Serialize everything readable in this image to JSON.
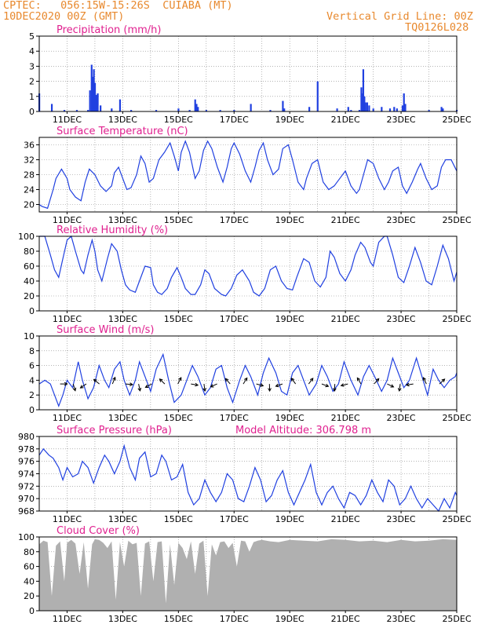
{
  "header": {
    "line1": "CPTEC:   056:15W-15:26S  CUIABA (MT)",
    "line2": "10DEC2020 00Z (GMT)",
    "grid_note": "Vertical Grid Line: 00Z",
    "code": "TQ0126L028"
  },
  "colors": {
    "header": "#e8892e",
    "panel_title": "#e0208f",
    "series_line": "#2040e0",
    "cloud_fill": "#b0b0b0",
    "wind_arrow": "#000000",
    "grid": "#888888"
  },
  "x_ticks": [
    "11DEC",
    "13DEC",
    "15DEC",
    "17DEC",
    "19DEC",
    "21DEC",
    "23DEC",
    "25DEC"
  ],
  "chart_data": [
    {
      "type": "bar",
      "title": "Precipitation (mm/h)",
      "ylim": [
        0,
        5
      ],
      "yticks": [
        "0",
        "1",
        "2",
        "3",
        "4",
        "5"
      ],
      "x_unit": "days since 10DEC2020 00Z",
      "bars": [
        [
          0.0,
          1.2
        ],
        [
          0.45,
          0.5
        ],
        [
          0.9,
          0.1
        ],
        [
          1.35,
          0.1
        ],
        [
          1.75,
          0.1
        ],
        [
          1.82,
          1.4
        ],
        [
          1.88,
          3.1
        ],
        [
          1.92,
          2.3
        ],
        [
          1.96,
          2.8
        ],
        [
          2.0,
          1.9
        ],
        [
          2.04,
          1.1
        ],
        [
          2.1,
          1.2
        ],
        [
          2.2,
          0.4
        ],
        [
          2.6,
          0.2
        ],
        [
          2.9,
          0.8
        ],
        [
          3.3,
          0.1
        ],
        [
          4.2,
          0.1
        ],
        [
          5.0,
          0.2
        ],
        [
          5.4,
          0.1
        ],
        [
          5.6,
          0.8
        ],
        [
          5.65,
          0.5
        ],
        [
          5.7,
          0.3
        ],
        [
          6.0,
          0.1
        ],
        [
          6.5,
          0.1
        ],
        [
          7.0,
          0.1
        ],
        [
          7.6,
          0.5
        ],
        [
          8.3,
          0.1
        ],
        [
          8.75,
          0.7
        ],
        [
          8.8,
          0.2
        ],
        [
          9.7,
          0.3
        ],
        [
          10.0,
          2.0
        ],
        [
          10.7,
          0.2
        ],
        [
          11.1,
          0.3
        ],
        [
          11.2,
          0.1
        ],
        [
          11.5,
          0.1
        ],
        [
          11.57,
          1.6
        ],
        [
          11.6,
          1.2
        ],
        [
          11.64,
          2.8
        ],
        [
          11.68,
          1.0
        ],
        [
          11.72,
          0.6
        ],
        [
          11.78,
          0.6
        ],
        [
          11.85,
          0.4
        ],
        [
          12.0,
          0.2
        ],
        [
          12.3,
          0.3
        ],
        [
          12.6,
          0.2
        ],
        [
          12.75,
          0.3
        ],
        [
          12.85,
          0.2
        ],
        [
          13.05,
          0.4
        ],
        [
          13.1,
          1.2
        ],
        [
          13.15,
          0.5
        ],
        [
          14.0,
          0.1
        ],
        [
          14.45,
          0.3
        ],
        [
          14.5,
          0.2
        ],
        [
          15.0,
          0.1
        ]
      ]
    },
    {
      "type": "line",
      "title": "Surface Temperature (nC)",
      "ylim": [
        18,
        38
      ],
      "yticks": [
        "20",
        "24",
        "28",
        "32",
        "36"
      ],
      "x": [
        0,
        0.1,
        0.3,
        0.5,
        0.6,
        0.8,
        1.0,
        1.1,
        1.3,
        1.5,
        1.65,
        1.8,
        2.0,
        2.2,
        2.4,
        2.6,
        2.7,
        2.85,
        3.0,
        3.15,
        3.3,
        3.5,
        3.65,
        3.8,
        3.95,
        4.1,
        4.3,
        4.5,
        4.7,
        4.85,
        5.0,
        5.1,
        5.25,
        5.4,
        5.6,
        5.75,
        5.9,
        6.05,
        6.2,
        6.4,
        6.6,
        6.75,
        6.9,
        7.0,
        7.2,
        7.4,
        7.6,
        7.75,
        7.9,
        8.05,
        8.2,
        8.4,
        8.6,
        8.75,
        8.95,
        9.1,
        9.3,
        9.5,
        9.6,
        9.8,
        10.0,
        10.1,
        10.2,
        10.4,
        10.6,
        10.8,
        11.0,
        11.2,
        11.4,
        11.5,
        11.65,
        11.8,
        12.0,
        12.2,
        12.4,
        12.55,
        12.7,
        12.9,
        13.05,
        13.2,
        13.4,
        13.6,
        13.7,
        13.9,
        14.1,
        14.3,
        14.45,
        14.6,
        14.8,
        15.0
      ],
      "y": [
        20,
        19.5,
        19,
        24,
        27,
        29.5,
        27,
        24,
        22,
        21,
        26,
        29.5,
        28,
        25,
        23.5,
        25,
        28.5,
        30,
        27,
        24,
        24.5,
        28,
        33,
        31,
        26,
        27,
        32,
        34,
        36.5,
        33,
        29,
        34,
        37,
        34,
        27,
        29,
        34.5,
        37,
        35,
        30,
        26,
        30,
        35,
        36.5,
        33.5,
        29,
        26,
        30,
        34.5,
        36.5,
        32,
        28,
        29.5,
        35,
        36,
        32,
        26,
        24,
        27,
        31,
        32,
        29,
        26,
        24,
        25,
        27,
        29,
        25,
        23,
        24,
        28,
        32,
        31,
        27,
        24,
        26,
        29,
        30,
        25,
        23,
        26,
        29.5,
        31,
        27,
        24,
        25,
        30,
        32,
        32,
        29
      ]
    },
    {
      "type": "line",
      "title": "Relative Humidity (%)",
      "ylim": [
        0,
        100
      ],
      "yticks": [
        "0",
        "20",
        "40",
        "60",
        "80",
        "100"
      ],
      "x": [
        0,
        0.2,
        0.4,
        0.55,
        0.7,
        0.85,
        1.0,
        1.15,
        1.3,
        1.5,
        1.6,
        1.75,
        1.9,
        2.0,
        2.1,
        2.25,
        2.45,
        2.6,
        2.8,
        2.95,
        3.1,
        3.25,
        3.45,
        3.6,
        3.8,
        4.0,
        4.1,
        4.25,
        4.4,
        4.6,
        4.75,
        4.95,
        5.1,
        5.25,
        5.45,
        5.6,
        5.8,
        5.95,
        6.1,
        6.3,
        6.55,
        6.7,
        6.9,
        7.1,
        7.3,
        7.55,
        7.7,
        7.9,
        8.1,
        8.3,
        8.5,
        8.7,
        8.9,
        9.1,
        9.25,
        9.5,
        9.7,
        9.9,
        10.1,
        10.3,
        10.45,
        10.6,
        10.8,
        11.0,
        11.2,
        11.35,
        11.55,
        11.7,
        11.9,
        12.0,
        12.2,
        12.4,
        12.5,
        12.7,
        12.9,
        13.1,
        13.3,
        13.5,
        13.7,
        13.9,
        14.1,
        14.3,
        14.5,
        14.7,
        14.9,
        15.0
      ],
      "y": [
        100,
        100,
        75,
        55,
        45,
        70,
        95,
        100,
        80,
        55,
        50,
        75,
        95,
        80,
        55,
        40,
        70,
        90,
        80,
        55,
        35,
        28,
        25,
        40,
        60,
        58,
        35,
        25,
        22,
        30,
        45,
        58,
        45,
        30,
        22,
        22,
        35,
        55,
        50,
        30,
        22,
        20,
        30,
        48,
        55,
        40,
        25,
        20,
        30,
        55,
        60,
        40,
        30,
        28,
        45,
        70,
        65,
        40,
        32,
        45,
        80,
        72,
        50,
        40,
        55,
        75,
        92,
        85,
        65,
        60,
        92,
        100,
        100,
        75,
        45,
        38,
        60,
        85,
        65,
        40,
        35,
        60,
        88,
        70,
        40,
        52
      ]
    },
    {
      "type": "line",
      "title": "Surface Wind (m/s)",
      "ylim": [
        0,
        10
      ],
      "yticks": [
        "0",
        "2",
        "4",
        "6",
        "8",
        "10"
      ],
      "x": [
        0,
        0.2,
        0.4,
        0.55,
        0.7,
        0.85,
        1.0,
        1.2,
        1.4,
        1.55,
        1.75,
        1.95,
        2.15,
        2.35,
        2.5,
        2.7,
        2.9,
        3.05,
        3.25,
        3.45,
        3.6,
        3.8,
        4.0,
        4.2,
        4.45,
        4.65,
        4.85,
        5.1,
        5.3,
        5.5,
        5.7,
        5.95,
        6.15,
        6.35,
        6.55,
        6.75,
        6.95,
        7.2,
        7.4,
        7.6,
        7.85,
        8.05,
        8.25,
        8.5,
        8.7,
        8.9,
        9.1,
        9.3,
        9.5,
        9.7,
        9.95,
        10.15,
        10.35,
        10.55,
        10.75,
        10.95,
        11.2,
        11.45,
        11.65,
        11.85,
        12.05,
        12.3,
        12.5,
        12.7,
        12.9,
        13.1,
        13.3,
        13.55,
        13.75,
        13.95,
        14.15,
        14.35,
        14.55,
        14.75,
        14.95,
        15.0
      ],
      "y": [
        3.5,
        4,
        3.5,
        2,
        0.5,
        2,
        4,
        3,
        6.5,
        4,
        1.5,
        3,
        6,
        4,
        3,
        5.5,
        6.5,
        4,
        2,
        4,
        6.5,
        4.5,
        2.5,
        5.5,
        7.5,
        4,
        1,
        2,
        4,
        6,
        4.5,
        2,
        3,
        5.5,
        6,
        3,
        1,
        4,
        6,
        4.5,
        2,
        5,
        7,
        5,
        2.5,
        2,
        5,
        6,
        4,
        2,
        3.5,
        6,
        4.5,
        2.5,
        3.5,
        6.5,
        4,
        2,
        4.5,
        6,
        4.5,
        2.5,
        4,
        7,
        5,
        3,
        4,
        7,
        4.5,
        2,
        5.5,
        4,
        3,
        4,
        4.5,
        5
      ]
    },
    {
      "type": "line",
      "title": "Surface Pressure (hPa)",
      "annotation": "Model Altitude: 306.798 m",
      "ylim": [
        968,
        980
      ],
      "yticks": [
        "968",
        "970",
        "972",
        "974",
        "976",
        "978",
        "980"
      ],
      "x": [
        0,
        0.15,
        0.35,
        0.5,
        0.7,
        0.85,
        1.0,
        1.2,
        1.4,
        1.55,
        1.75,
        1.95,
        2.15,
        2.35,
        2.5,
        2.7,
        2.9,
        3.05,
        3.25,
        3.45,
        3.6,
        3.8,
        4.0,
        4.2,
        4.4,
        4.55,
        4.75,
        4.95,
        5.15,
        5.35,
        5.55,
        5.75,
        5.95,
        6.15,
        6.35,
        6.55,
        6.75,
        6.95,
        7.15,
        7.35,
        7.55,
        7.75,
        7.95,
        8.15,
        8.35,
        8.55,
        8.75,
        8.95,
        9.15,
        9.35,
        9.55,
        9.75,
        9.95,
        10.15,
        10.35,
        10.55,
        10.75,
        10.95,
        11.15,
        11.35,
        11.55,
        11.75,
        11.95,
        12.15,
        12.35,
        12.55,
        12.75,
        12.95,
        13.15,
        13.35,
        13.55,
        13.75,
        13.95,
        14.15,
        14.35,
        14.55,
        14.75,
        14.95,
        15.0
      ],
      "y": [
        977,
        978,
        977,
        976.5,
        975,
        973,
        975,
        973.5,
        974,
        976,
        975,
        972.5,
        975,
        977,
        976,
        974,
        976,
        978.5,
        975,
        973,
        976.5,
        977.5,
        973.5,
        974,
        977,
        976,
        973,
        973.5,
        975.5,
        971,
        969,
        970,
        973,
        971,
        969.5,
        971,
        974,
        973,
        970,
        969.5,
        972,
        975,
        973,
        969.5,
        970.5,
        973,
        974.5,
        971,
        969,
        971,
        973,
        975.5,
        971,
        969,
        971,
        972,
        970,
        968.5,
        971,
        970.5,
        969,
        970.5,
        973,
        971,
        969.5,
        973,
        972,
        969,
        970,
        972,
        970,
        968.5,
        970,
        969,
        968,
        970,
        968.5,
        971,
        970.5
      ]
    },
    {
      "type": "area",
      "title": "Cloud Cover (%)",
      "ylim": [
        0,
        100
      ],
      "yticks": [
        "0",
        "20",
        "40",
        "60",
        "80",
        "100"
      ],
      "x": [
        0,
        0.15,
        0.3,
        0.45,
        0.6,
        0.75,
        0.9,
        1.0,
        1.15,
        1.3,
        1.45,
        1.6,
        1.75,
        1.9,
        2.0,
        2.15,
        2.3,
        2.45,
        2.6,
        2.75,
        2.9,
        3.05,
        3.2,
        3.35,
        3.5,
        3.65,
        3.8,
        3.95,
        4.1,
        4.25,
        4.4,
        4.55,
        4.7,
        4.85,
        5.0,
        5.15,
        5.3,
        5.45,
        5.6,
        5.75,
        5.9,
        6.05,
        6.2,
        6.35,
        6.5,
        6.65,
        6.8,
        6.95,
        7.1,
        7.25,
        7.4,
        7.55,
        7.7,
        7.85,
        8.0,
        8.3,
        8.6,
        9.0,
        9.5,
        10.0,
        10.5,
        11.0,
        11.5,
        12.0,
        12.5,
        13.0,
        13.5,
        14.0,
        14.5,
        15.0
      ],
      "y": [
        90,
        95,
        93,
        20,
        88,
        94,
        40,
        92,
        96,
        91,
        50,
        93,
        30,
        90,
        97,
        96,
        92,
        85,
        94,
        15,
        93,
        60,
        95,
        90,
        92,
        20,
        91,
        94,
        40,
        93,
        94,
        10,
        90,
        35,
        92,
        85,
        70,
        94,
        50,
        91,
        95,
        20,
        90,
        75,
        93,
        94,
        85,
        92,
        60,
        95,
        94,
        80,
        93,
        95,
        96,
        94,
        93,
        96,
        95,
        94,
        97,
        96,
        94,
        95,
        93,
        96,
        94,
        95,
        97,
        96
      ]
    }
  ]
}
